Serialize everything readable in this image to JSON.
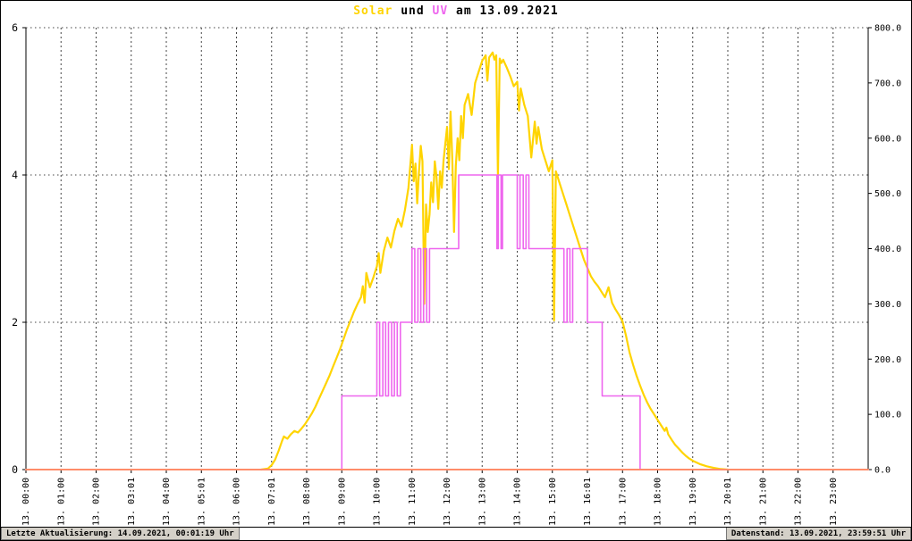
{
  "title": {
    "solar": "Solar",
    "und": " und ",
    "uv": "UV",
    "date": " am 13.09.2021"
  },
  "footer": {
    "left": "Letzte Aktualisierung: 14.09.2021, 00:01:19 Uhr",
    "right": "Datenstand: 13.09.2021, 23:59:51 Uhr"
  },
  "colors": {
    "solar": "#ffd400",
    "uv": "#ee66ee",
    "baseline": "#ff8c69",
    "grid": "#444444",
    "axis": "#000000",
    "footer_box_bg": "#d4d0c8"
  },
  "chart_data": {
    "type": "line",
    "title": "Solar und UV am 13.09.2021",
    "grid": true,
    "legend_position": "none",
    "x_range": [
      0,
      24
    ],
    "x_tick_hours": [
      0,
      1,
      2,
      3,
      4,
      5,
      6,
      7,
      8,
      9,
      10,
      11,
      12,
      13,
      14,
      15,
      16,
      17,
      18,
      19,
      20,
      21,
      22,
      23
    ],
    "x_tick_labels": [
      "13. 00:00",
      "13. 01:00",
      "13. 02:00",
      "13. 03:01",
      "13. 04:00",
      "13. 05:01",
      "13. 06:00",
      "13. 07:01",
      "13. 08:00",
      "13. 09:00",
      "13. 10:00",
      "13. 11:00",
      "13. 12:00",
      "13. 13:00",
      "13. 14:00",
      "13. 15:00",
      "13. 16:01",
      "13. 17:00",
      "13. 18:00",
      "13. 19:00",
      "13. 20:01",
      "13. 21:00",
      "13. 22:00",
      "13. 23:00"
    ],
    "left_axis": {
      "series": "UV",
      "range": [
        0,
        6
      ],
      "ticks": [
        0,
        2,
        4,
        6
      ],
      "grid_at": [
        2,
        4,
        6
      ]
    },
    "right_axis": {
      "series": "Solar",
      "range": [
        0,
        800
      ],
      "ticks": [
        0,
        100,
        200,
        300,
        400,
        500,
        600,
        700,
        800
      ],
      "tick_labels": [
        "0.0",
        "100.0",
        "200.0",
        "300.0",
        "400.0",
        "500.0",
        "600.0",
        "700.0",
        "800.0"
      ]
    },
    "series": [
      {
        "name": "Solar",
        "axis": "right",
        "style": "line",
        "color": "#ffd400",
        "width": 2.2,
        "points": [
          [
            6.7,
            0
          ],
          [
            6.9,
            2
          ],
          [
            7.0,
            8
          ],
          [
            7.1,
            18
          ],
          [
            7.2,
            34
          ],
          [
            7.3,
            52
          ],
          [
            7.35,
            60
          ],
          [
            7.45,
            56
          ],
          [
            7.55,
            64
          ],
          [
            7.65,
            70
          ],
          [
            7.75,
            67
          ],
          [
            7.85,
            74
          ],
          [
            7.95,
            82
          ],
          [
            8.05,
            92
          ],
          [
            8.15,
            102
          ],
          [
            8.25,
            114
          ],
          [
            8.35,
            128
          ],
          [
            8.45,
            142
          ],
          [
            8.55,
            156
          ],
          [
            8.65,
            170
          ],
          [
            8.75,
            186
          ],
          [
            8.85,
            202
          ],
          [
            8.95,
            218
          ],
          [
            9.05,
            236
          ],
          [
            9.15,
            254
          ],
          [
            9.25,
            270
          ],
          [
            9.35,
            286
          ],
          [
            9.45,
            300
          ],
          [
            9.55,
            312
          ],
          [
            9.6,
            332
          ],
          [
            9.65,
            302
          ],
          [
            9.7,
            356
          ],
          [
            9.8,
            330
          ],
          [
            9.9,
            348
          ],
          [
            10.0,
            368
          ],
          [
            10.05,
            392
          ],
          [
            10.1,
            356
          ],
          [
            10.2,
            396
          ],
          [
            10.3,
            420
          ],
          [
            10.4,
            402
          ],
          [
            10.5,
            432
          ],
          [
            10.6,
            454
          ],
          [
            10.7,
            440
          ],
          [
            10.8,
            470
          ],
          [
            10.9,
            510
          ],
          [
            11.0,
            588
          ],
          [
            11.05,
            522
          ],
          [
            11.1,
            554
          ],
          [
            11.15,
            482
          ],
          [
            11.2,
            540
          ],
          [
            11.25,
            586
          ],
          [
            11.3,
            558
          ],
          [
            11.35,
            300
          ],
          [
            11.4,
            480
          ],
          [
            11.45,
            430
          ],
          [
            11.5,
            462
          ],
          [
            11.55,
            520
          ],
          [
            11.6,
            484
          ],
          [
            11.65,
            558
          ],
          [
            11.7,
            530
          ],
          [
            11.75,
            472
          ],
          [
            11.8,
            540
          ],
          [
            11.85,
            510
          ],
          [
            11.9,
            560
          ],
          [
            12.0,
            620
          ],
          [
            12.05,
            544
          ],
          [
            12.1,
            648
          ],
          [
            12.15,
            560
          ],
          [
            12.2,
            430
          ],
          [
            12.25,
            550
          ],
          [
            12.3,
            600
          ],
          [
            12.35,
            560
          ],
          [
            12.4,
            640
          ],
          [
            12.45,
            600
          ],
          [
            12.5,
            660
          ],
          [
            12.6,
            680
          ],
          [
            12.7,
            642
          ],
          [
            12.8,
            700
          ],
          [
            12.9,
            720
          ],
          [
            13.0,
            740
          ],
          [
            13.1,
            750
          ],
          [
            13.15,
            704
          ],
          [
            13.2,
            746
          ],
          [
            13.3,
            755
          ],
          [
            13.35,
            742
          ],
          [
            13.4,
            750
          ],
          [
            13.45,
            530
          ],
          [
            13.5,
            744
          ],
          [
            13.55,
            736
          ],
          [
            13.6,
            742
          ],
          [
            13.7,
            728
          ],
          [
            13.8,
            712
          ],
          [
            13.9,
            694
          ],
          [
            14.0,
            702
          ],
          [
            14.05,
            650
          ],
          [
            14.1,
            690
          ],
          [
            14.2,
            660
          ],
          [
            14.3,
            640
          ],
          [
            14.4,
            565
          ],
          [
            14.5,
            630
          ],
          [
            14.55,
            590
          ],
          [
            14.6,
            620
          ],
          [
            14.7,
            580
          ],
          [
            14.8,
            560
          ],
          [
            14.9,
            540
          ],
          [
            15.0,
            560
          ],
          [
            15.05,
            270
          ],
          [
            15.1,
            540
          ],
          [
            15.2,
            520
          ],
          [
            15.3,
            500
          ],
          [
            15.4,
            480
          ],
          [
            15.5,
            460
          ],
          [
            15.6,
            440
          ],
          [
            15.7,
            420
          ],
          [
            15.8,
            400
          ],
          [
            15.9,
            380
          ],
          [
            16.0,
            365
          ],
          [
            16.1,
            350
          ],
          [
            16.2,
            340
          ],
          [
            16.3,
            332
          ],
          [
            16.4,
            322
          ],
          [
            16.5,
            312
          ],
          [
            16.6,
            330
          ],
          [
            16.7,
            302
          ],
          [
            16.8,
            290
          ],
          [
            16.9,
            280
          ],
          [
            17.0,
            268
          ],
          [
            17.1,
            242
          ],
          [
            17.2,
            212
          ],
          [
            17.3,
            190
          ],
          [
            17.4,
            170
          ],
          [
            17.5,
            152
          ],
          [
            17.6,
            136
          ],
          [
            17.7,
            122
          ],
          [
            17.8,
            110
          ],
          [
            17.9,
            100
          ],
          [
            18.0,
            90
          ],
          [
            18.1,
            80
          ],
          [
            18.2,
            70
          ],
          [
            18.25,
            76
          ],
          [
            18.3,
            64
          ],
          [
            18.4,
            54
          ],
          [
            18.5,
            45
          ],
          [
            18.6,
            38
          ],
          [
            18.7,
            31
          ],
          [
            18.8,
            25
          ],
          [
            18.9,
            20
          ],
          [
            19.0,
            16
          ],
          [
            19.2,
            10
          ],
          [
            19.4,
            6
          ],
          [
            19.6,
            3
          ],
          [
            19.8,
            1
          ],
          [
            20.0,
            0
          ]
        ]
      },
      {
        "name": "UV",
        "axis": "left",
        "style": "step",
        "color": "#ee66ee",
        "width": 1.6,
        "points": [
          [
            0,
            0
          ],
          [
            9.0,
            1
          ],
          [
            10.0,
            2
          ],
          [
            10.08,
            1
          ],
          [
            10.17,
            2
          ],
          [
            10.25,
            1
          ],
          [
            10.33,
            2
          ],
          [
            10.42,
            1
          ],
          [
            10.5,
            2
          ],
          [
            10.58,
            1
          ],
          [
            10.67,
            2
          ],
          [
            11.0,
            3
          ],
          [
            11.08,
            2
          ],
          [
            11.17,
            3
          ],
          [
            11.25,
            2
          ],
          [
            11.33,
            3
          ],
          [
            11.42,
            2
          ],
          [
            11.5,
            3
          ],
          [
            12.33,
            4
          ],
          [
            13.42,
            3
          ],
          [
            13.46,
            4
          ],
          [
            13.54,
            3
          ],
          [
            13.58,
            4
          ],
          [
            14.0,
            3
          ],
          [
            14.08,
            4
          ],
          [
            14.17,
            3
          ],
          [
            14.25,
            4
          ],
          [
            14.33,
            3
          ],
          [
            15.33,
            2
          ],
          [
            15.42,
            3
          ],
          [
            15.5,
            2
          ],
          [
            15.58,
            3
          ],
          [
            16.0,
            2
          ],
          [
            16.42,
            1
          ],
          [
            17.5,
            0
          ]
        ]
      },
      {
        "name": "Nulllinie",
        "axis": "left",
        "style": "line",
        "color": "#ff8c69",
        "width": 2,
        "points": [
          [
            0,
            0
          ],
          [
            24,
            0
          ]
        ]
      }
    ]
  }
}
